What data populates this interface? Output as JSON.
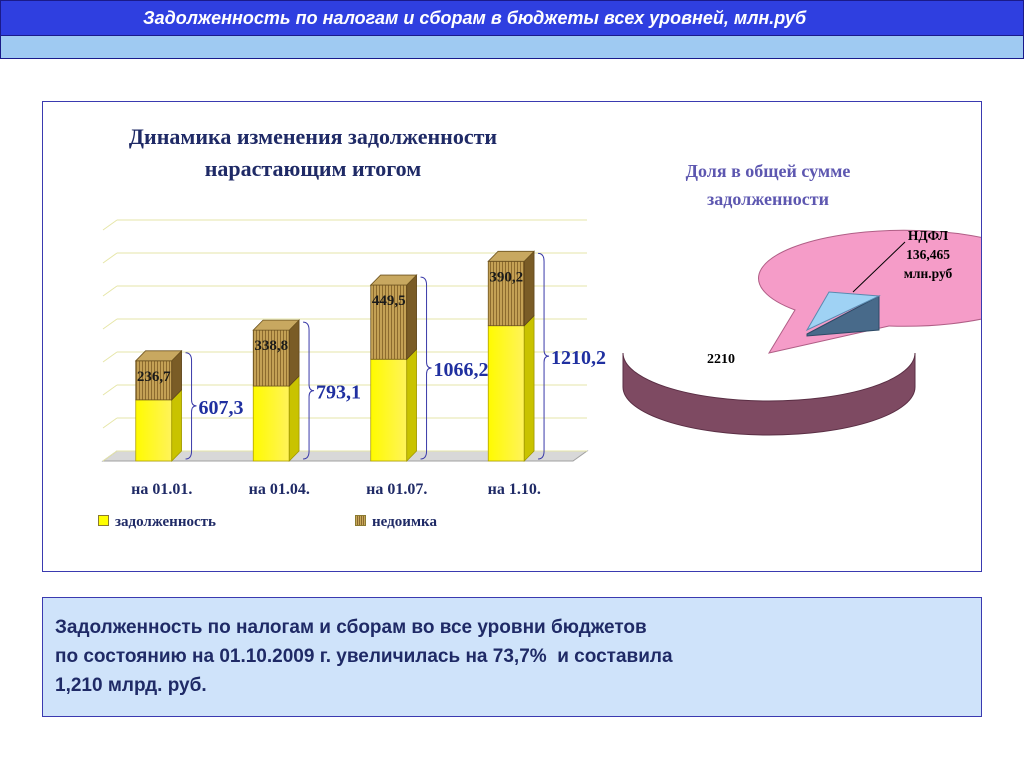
{
  "header": {
    "title": "Задолженность по налогам и сборам в бюджеты всех уровней, млн.руб"
  },
  "bar_chart": {
    "title_line1": "Динамика изменения задолженности",
    "title_line2": "нарастающим итогом",
    "legend": {
      "debt": "задолженность",
      "arrears": "недоимка"
    }
  },
  "pie_chart": {
    "title_line1": "Доля в общей сумме",
    "title_line2": "задолженности",
    "callout_line1": "НДФЛ",
    "callout_line2": "136,465",
    "callout_line3": "млн.руб",
    "main_value": "2210"
  },
  "chart_data": [
    {
      "type": "bar",
      "stacked": true,
      "categories": [
        "на 01.01.",
        "на 01.04.",
        "на 01.07.",
        "на 1.10."
      ],
      "series": [
        {
          "name": "задолженность",
          "values": [
            370.6,
            454.3,
            616.7,
            820.0
          ]
        },
        {
          "name": "недоимка",
          "values": [
            236.7,
            338.8,
            449.5,
            390.2
          ]
        }
      ],
      "segment_labels": [
        "236,7",
        "338,8",
        "449,5",
        "390,2"
      ],
      "total_labels": [
        "607,3",
        "793,1",
        "1066,2",
        "1210,2"
      ],
      "totals": [
        607.3,
        793.1,
        1066.2,
        1210.2
      ],
      "ylim": [
        0,
        1400
      ],
      "grid": true,
      "legend_position": "bottom",
      "colors": {
        "debt": "#ffff00",
        "arrears": "#b8954a",
        "totals": "#2030a0"
      }
    },
    {
      "type": "pie",
      "slices": [
        {
          "label": "НДФЛ 136,465 млн.руб",
          "value": 136.465,
          "color": "#9fd0f4"
        },
        {
          "label": "2210",
          "value": 2210,
          "color": "#f49ac8"
        }
      ]
    }
  ],
  "summary": {
    "line1": "Задолженность по налогам и сборам во все уровни бюджетов",
    "line2": "по состоянию на 01.10.2009 г. увеличилась на 73,7%  и составила",
    "line3": "1,210 млрд. руб."
  }
}
